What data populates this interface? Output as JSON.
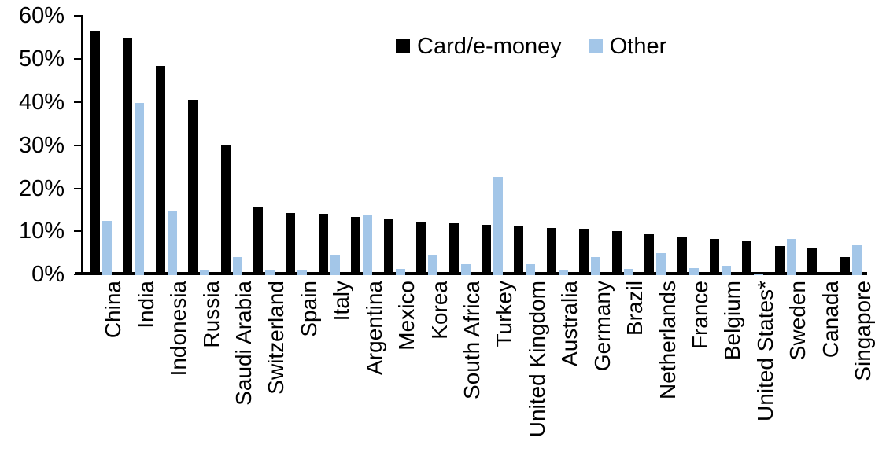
{
  "legend": {
    "items": [
      {
        "label": "Card/e-money",
        "color": "#000000"
      },
      {
        "label": "Other",
        "color": "#A3C6E8"
      }
    ]
  },
  "chart_data": {
    "type": "bar",
    "title": "",
    "xlabel": "",
    "ylabel": "",
    "ylim": [
      0,
      60
    ],
    "ytick_step": 10,
    "ytick_labels": [
      "0%",
      "10%",
      "20%",
      "30%",
      "40%",
      "50%",
      "60%"
    ],
    "grid": false,
    "legend_position": "top-center",
    "categories": [
      "China",
      "India",
      "Indonesia",
      "Russia",
      "Saudi Arabia",
      "Switzerland",
      "Spain",
      "Italy",
      "Argentina",
      "Mexico",
      "Korea",
      "South Africa",
      "Turkey",
      "United Kingdom",
      "Australia",
      "Germany",
      "Brazil",
      "Netherlands",
      "France",
      "Belgium",
      "United States*",
      "Sweden",
      "Canada",
      "Singapore"
    ],
    "series": [
      {
        "name": "Card/e-money",
        "color": "#000000",
        "values": [
          56.4,
          55.0,
          48.4,
          40.6,
          29.9,
          15.7,
          14.2,
          14.1,
          13.4,
          13.0,
          12.3,
          11.9,
          11.6,
          11.2,
          10.9,
          10.7,
          10.0,
          9.3,
          8.7,
          8.2,
          7.9,
          6.6,
          6.0,
          4.0
        ]
      },
      {
        "name": "Other",
        "color": "#A3C6E8",
        "values": [
          12.4,
          39.8,
          14.6,
          1.2,
          4.0,
          0.9,
          1.2,
          4.7,
          13.9,
          1.4,
          4.6,
          2.4,
          22.6,
          2.4,
          1.1,
          4.0,
          1.3,
          5.0,
          1.6,
          2.1,
          0.3,
          8.2,
          0.0,
          6.8
        ]
      }
    ]
  }
}
